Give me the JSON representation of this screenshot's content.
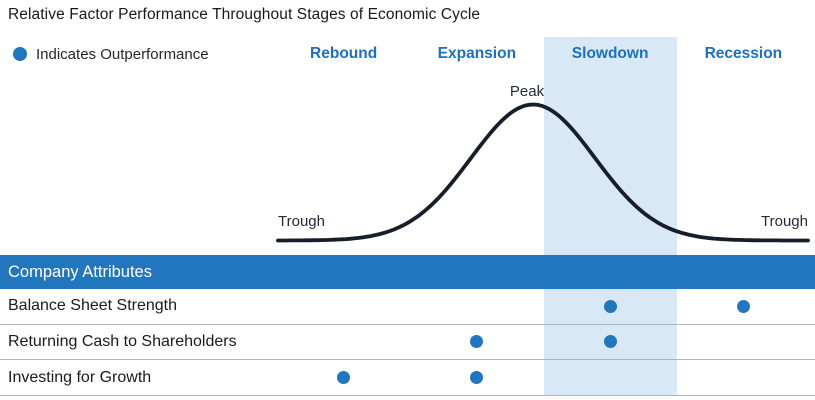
{
  "title": "Relative Factor Performance Throughout Stages of Economic Cycle",
  "legend": {
    "label": "Indicates Outperformance"
  },
  "stages": [
    {
      "label": "Rebound",
      "highlighted": false
    },
    {
      "label": "Expansion",
      "highlighted": false
    },
    {
      "label": "Slowdown",
      "highlighted": true
    },
    {
      "label": "Recession",
      "highlighted": false
    }
  ],
  "curve": {
    "peak_label": "Peak",
    "trough_left_label": "Trough",
    "trough_right_label": "Trough"
  },
  "table": {
    "header": "Company Attributes",
    "rows": [
      {
        "label": "Balance Sheet Strength",
        "outperforms": [
          false,
          false,
          true,
          true
        ]
      },
      {
        "label": "Returning Cash to Shareholders",
        "outperforms": [
          false,
          true,
          true,
          false
        ]
      },
      {
        "label": "Investing for Growth",
        "outperforms": [
          true,
          true,
          false,
          false
        ]
      }
    ]
  },
  "colors": {
    "accent_blue": "#2276be",
    "stage_label_blue": "#1d6fc0",
    "highlight_band": "#d9e8f7",
    "curve_stroke": "#161e29",
    "separator_gray": "#b0b3b7"
  },
  "chart_data": [
    {
      "type": "line",
      "title": "Relative Factor Performance Throughout Stages of Economic Cycle",
      "shape": "bell-curve (stylized economic cycle)",
      "x_stage_bands": [
        "Rebound",
        "Expansion",
        "Slowdown",
        "Recession"
      ],
      "highlighted_stage": "Slowdown",
      "annotations": [
        {
          "label": "Trough",
          "position": "left baseline (start of Rebound)"
        },
        {
          "label": "Peak",
          "position": "apex (Expansion/Slowdown boundary)"
        },
        {
          "label": "Trough",
          "position": "right baseline (end of Recession)"
        }
      ],
      "grid": false,
      "legend_position": "top-left"
    },
    {
      "type": "table",
      "title": "Company Attributes",
      "legend": "Indicates Outperformance",
      "columns": [
        "Rebound",
        "Expansion",
        "Slowdown",
        "Recession"
      ],
      "rows": [
        {
          "label": "Balance Sheet Strength",
          "outperforms": [
            "Slowdown",
            "Recession"
          ]
        },
        {
          "label": "Returning Cash to Shareholders",
          "outperforms": [
            "Expansion",
            "Slowdown"
          ]
        },
        {
          "label": "Investing for Growth",
          "outperforms": [
            "Rebound",
            "Expansion"
          ]
        }
      ]
    }
  ]
}
